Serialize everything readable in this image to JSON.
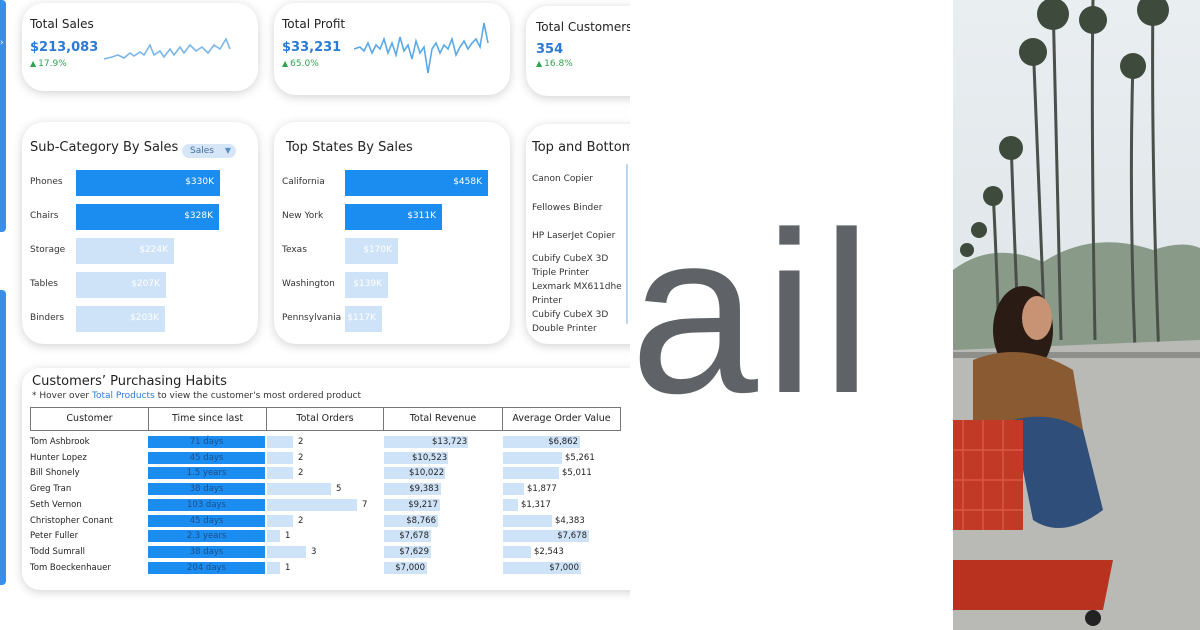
{
  "kpis": [
    {
      "title": "Total Sales",
      "value": "$213,083",
      "change": "17.9%"
    },
    {
      "title": "Total Profit",
      "value": "$33,231",
      "change": "65.0%"
    },
    {
      "title": "Total Customers",
      "value": "354",
      "change": "16.8%"
    }
  ],
  "subcategory": {
    "title": "Sub-Category By Sales",
    "filter_label": "Sales",
    "rows": [
      {
        "label": "Phones",
        "value": "$330K",
        "amount": 330
      },
      {
        "label": "Chairs",
        "value": "$328K",
        "amount": 328
      },
      {
        "label": "Storage",
        "value": "$224K",
        "amount": 224
      },
      {
        "label": "Tables",
        "value": "$207K",
        "amount": 207
      },
      {
        "label": "Binders",
        "value": "$203K",
        "amount": 203
      }
    ]
  },
  "states": {
    "title": "Top States By Sales",
    "rows": [
      {
        "label": "California",
        "value": "$458K",
        "amount": 458
      },
      {
        "label": "New York",
        "value": "$311K",
        "amount": 311
      },
      {
        "label": "Texas",
        "value": "$170K",
        "amount": 170
      },
      {
        "label": "Washington",
        "value": "$139K",
        "amount": 139
      },
      {
        "label": "Pennsylvania",
        "value": "$117K",
        "amount": 117
      }
    ]
  },
  "topbottom": {
    "title": "Top and Bottom",
    "items": [
      "Canon Copier",
      "Fellowes Binder",
      "HP LaserJet Copier",
      "Cubify CubeX 3D Triple Printer",
      "Lexmark MX611dhe Printer",
      "Cubify CubeX 3D Double Printer"
    ]
  },
  "table": {
    "title": "Customers’ Purchasing Habits",
    "subtitle_pre": "* Hover over ",
    "subtitle_link": "Total Products",
    "subtitle_post": " to view the customer's most ordered product",
    "headers": [
      "Customer",
      "Time since last purchase",
      "Total Orders",
      "Total Revenue",
      "Average Order Value"
    ],
    "rows": [
      {
        "customer": "Tom Ashbrook",
        "time": "71 days",
        "orders": "2",
        "orders_n": 2,
        "revenue": "$13,723",
        "revenue_n": 13723,
        "avg": "$6,862",
        "avg_n": 6862
      },
      {
        "customer": "Hunter Lopez",
        "time": "45 days",
        "orders": "2",
        "orders_n": 2,
        "revenue": "$10,523",
        "revenue_n": 10523,
        "avg": "$5,261",
        "avg_n": 5261
      },
      {
        "customer": "Bill Shonely",
        "time": "1.5 years",
        "orders": "2",
        "orders_n": 2,
        "revenue": "$10,022",
        "revenue_n": 10022,
        "avg": "$5,011",
        "avg_n": 5011
      },
      {
        "customer": "Greg Tran",
        "time": "38 days",
        "orders": "5",
        "orders_n": 5,
        "revenue": "$9,383",
        "revenue_n": 9383,
        "avg": "$1,877",
        "avg_n": 1877
      },
      {
        "customer": "Seth Vernon",
        "time": "103 days",
        "orders": "7",
        "orders_n": 7,
        "revenue": "$9,217",
        "revenue_n": 9217,
        "avg": "$1,317",
        "avg_n": 1317
      },
      {
        "customer": "Christopher Conant",
        "time": "45 days",
        "orders": "2",
        "orders_n": 2,
        "revenue": "$8,766",
        "revenue_n": 8766,
        "avg": "$4,383",
        "avg_n": 4383
      },
      {
        "customer": "Peter Fuller",
        "time": "2.3 years",
        "orders": "1",
        "orders_n": 1,
        "revenue": "$7,678",
        "revenue_n": 7678,
        "avg": "$7,678",
        "avg_n": 7678
      },
      {
        "customer": "Todd Sumrall",
        "time": "38 days",
        "orders": "3",
        "orders_n": 3,
        "revenue": "$7,629",
        "revenue_n": 7629,
        "avg": "$2,543",
        "avg_n": 2543
      },
      {
        "customer": "Tom Boeckenhauer",
        "time": "204 days",
        "orders": "1",
        "orders_n": 1,
        "revenue": "$7,000",
        "revenue_n": 7000,
        "avg": "$7,000",
        "avg_n": 7000
      }
    ]
  },
  "logo": {
    "text": "ail"
  },
  "colors": {
    "accent": "#1b8cf0",
    "light_bar": "#cfe3f8",
    "positive": "#2ea44f",
    "logo_gray": "#5f6368"
  },
  "icons": {
    "change": "triangle-up-icon",
    "filter": "caret-down-icon"
  }
}
